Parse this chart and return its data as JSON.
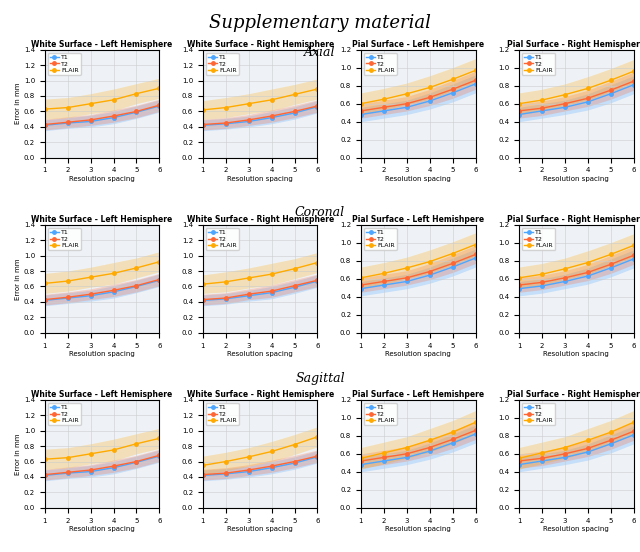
{
  "title": "Supplementary material",
  "row_labels": [
    "Axial",
    "Coronal",
    "Sagittal"
  ],
  "col_titles": [
    "White Surface - Left Hemisphere",
    "White Surface - Right Hemisphere",
    "Pial Surface - Left Hemishpere",
    "Pial Surface - Right Hemisphere"
  ],
  "x": [
    1,
    2,
    3,
    4,
    5,
    6
  ],
  "colors": {
    "T1": "#4da6ff",
    "T2": "#ff6633",
    "FLAIR": "#ffaa00"
  },
  "legend_labels": [
    "T1",
    "T2",
    "FLAIR"
  ],
  "xlabel": "Resolution spacing",
  "ylabel": "Error in mm",
  "data": {
    "Axial": {
      "White Surface - Left Hemisphere": {
        "T1": {
          "mean": [
            0.42,
            0.45,
            0.47,
            0.52,
            0.59,
            0.67
          ],
          "lo": [
            0.35,
            0.38,
            0.4,
            0.44,
            0.51,
            0.59
          ],
          "hi": [
            0.49,
            0.52,
            0.55,
            0.6,
            0.67,
            0.75
          ]
        },
        "T2": {
          "mean": [
            0.43,
            0.46,
            0.49,
            0.54,
            0.6,
            0.68
          ],
          "lo": [
            0.36,
            0.39,
            0.42,
            0.46,
            0.52,
            0.6
          ],
          "hi": [
            0.5,
            0.53,
            0.56,
            0.62,
            0.68,
            0.76
          ]
        },
        "FLAIR": {
          "mean": [
            0.63,
            0.65,
            0.7,
            0.75,
            0.83,
            0.9
          ],
          "lo": [
            0.5,
            0.52,
            0.57,
            0.61,
            0.7,
            0.77
          ],
          "hi": [
            0.76,
            0.78,
            0.83,
            0.89,
            0.96,
            1.03
          ]
        },
        "ylim": [
          0.0,
          1.4
        ]
      },
      "White Surface - Right Hemisphere": {
        "T1": {
          "mean": [
            0.42,
            0.44,
            0.47,
            0.52,
            0.58,
            0.66
          ],
          "lo": [
            0.35,
            0.37,
            0.4,
            0.44,
            0.5,
            0.58
          ],
          "hi": [
            0.49,
            0.51,
            0.54,
            0.6,
            0.66,
            0.74
          ]
        },
        "T2": {
          "mean": [
            0.43,
            0.45,
            0.49,
            0.54,
            0.6,
            0.67
          ],
          "lo": [
            0.36,
            0.38,
            0.42,
            0.46,
            0.52,
            0.59
          ],
          "hi": [
            0.5,
            0.52,
            0.56,
            0.62,
            0.68,
            0.75
          ]
        },
        "FLAIR": {
          "mean": [
            0.62,
            0.65,
            0.7,
            0.75,
            0.82,
            0.89
          ],
          "lo": [
            0.5,
            0.52,
            0.57,
            0.61,
            0.69,
            0.76
          ],
          "hi": [
            0.74,
            0.78,
            0.83,
            0.89,
            0.95,
            1.02
          ]
        },
        "ylim": [
          0.0,
          1.4
        ]
      },
      "Pial Surface - Left Hemishpere": {
        "T1": {
          "mean": [
            0.48,
            0.52,
            0.56,
            0.63,
            0.72,
            0.82
          ],
          "lo": [
            0.4,
            0.44,
            0.48,
            0.54,
            0.62,
            0.72
          ],
          "hi": [
            0.56,
            0.6,
            0.64,
            0.72,
            0.82,
            0.92
          ]
        },
        "T2": {
          "mean": [
            0.52,
            0.56,
            0.6,
            0.67,
            0.76,
            0.86
          ],
          "lo": [
            0.44,
            0.48,
            0.52,
            0.58,
            0.66,
            0.76
          ],
          "hi": [
            0.6,
            0.64,
            0.68,
            0.76,
            0.86,
            0.96
          ]
        },
        "FLAIR": {
          "mean": [
            0.6,
            0.65,
            0.71,
            0.78,
            0.87,
            0.97
          ],
          "lo": [
            0.48,
            0.53,
            0.59,
            0.65,
            0.74,
            0.84
          ],
          "hi": [
            0.72,
            0.77,
            0.83,
            0.91,
            1.0,
            1.1
          ]
        },
        "ylim": [
          0.0,
          1.2
        ]
      },
      "Pial Surface - Right Hemisphere": {
        "T1": {
          "mean": [
            0.48,
            0.52,
            0.56,
            0.62,
            0.71,
            0.81
          ],
          "lo": [
            0.4,
            0.44,
            0.48,
            0.53,
            0.61,
            0.71
          ],
          "hi": [
            0.56,
            0.6,
            0.64,
            0.71,
            0.81,
            0.91
          ]
        },
        "T2": {
          "mean": [
            0.52,
            0.55,
            0.6,
            0.66,
            0.75,
            0.85
          ],
          "lo": [
            0.44,
            0.47,
            0.52,
            0.57,
            0.65,
            0.75
          ],
          "hi": [
            0.6,
            0.63,
            0.68,
            0.75,
            0.85,
            0.95
          ]
        },
        "FLAIR": {
          "mean": [
            0.6,
            0.64,
            0.7,
            0.77,
            0.86,
            0.96
          ],
          "lo": [
            0.48,
            0.52,
            0.58,
            0.64,
            0.73,
            0.83
          ],
          "hi": [
            0.72,
            0.76,
            0.82,
            0.9,
            0.99,
            1.09
          ]
        },
        "ylim": [
          0.0,
          1.2
        ]
      }
    },
    "Coronal": {
      "White Surface - Left Hemisphere": {
        "T1": {
          "mean": [
            0.42,
            0.45,
            0.48,
            0.53,
            0.6,
            0.68
          ],
          "lo": [
            0.35,
            0.38,
            0.41,
            0.45,
            0.52,
            0.6
          ],
          "hi": [
            0.49,
            0.52,
            0.55,
            0.61,
            0.68,
            0.76
          ]
        },
        "T2": {
          "mean": [
            0.43,
            0.46,
            0.5,
            0.55,
            0.61,
            0.69
          ],
          "lo": [
            0.36,
            0.39,
            0.43,
            0.47,
            0.53,
            0.61
          ],
          "hi": [
            0.5,
            0.53,
            0.57,
            0.63,
            0.69,
            0.77
          ]
        },
        "FLAIR": {
          "mean": [
            0.64,
            0.67,
            0.72,
            0.77,
            0.84,
            0.92
          ],
          "lo": [
            0.51,
            0.54,
            0.59,
            0.63,
            0.71,
            0.79
          ],
          "hi": [
            0.77,
            0.8,
            0.85,
            0.91,
            0.97,
            1.05
          ]
        },
        "ylim": [
          0.0,
          1.4
        ]
      },
      "White Surface - Right Hemisphere": {
        "T1": {
          "mean": [
            0.42,
            0.44,
            0.48,
            0.52,
            0.59,
            0.67
          ],
          "lo": [
            0.35,
            0.37,
            0.41,
            0.44,
            0.51,
            0.59
          ],
          "hi": [
            0.49,
            0.51,
            0.55,
            0.6,
            0.67,
            0.75
          ]
        },
        "T2": {
          "mean": [
            0.43,
            0.45,
            0.5,
            0.54,
            0.61,
            0.68
          ],
          "lo": [
            0.36,
            0.38,
            0.43,
            0.46,
            0.53,
            0.6
          ],
          "hi": [
            0.5,
            0.52,
            0.57,
            0.62,
            0.69,
            0.76
          ]
        },
        "FLAIR": {
          "mean": [
            0.63,
            0.66,
            0.71,
            0.76,
            0.83,
            0.91
          ],
          "lo": [
            0.51,
            0.53,
            0.58,
            0.62,
            0.7,
            0.78
          ],
          "hi": [
            0.75,
            0.79,
            0.84,
            0.9,
            0.96,
            1.04
          ]
        },
        "ylim": [
          0.0,
          1.4
        ]
      },
      "Pial Surface - Left Hemishpere": {
        "T1": {
          "mean": [
            0.49,
            0.53,
            0.57,
            0.64,
            0.73,
            0.83
          ],
          "lo": [
            0.41,
            0.45,
            0.49,
            0.55,
            0.63,
            0.73
          ],
          "hi": [
            0.57,
            0.61,
            0.65,
            0.73,
            0.83,
            0.93
          ]
        },
        "T2": {
          "mean": [
            0.53,
            0.57,
            0.61,
            0.68,
            0.77,
            0.87
          ],
          "lo": [
            0.45,
            0.49,
            0.53,
            0.59,
            0.67,
            0.77
          ],
          "hi": [
            0.61,
            0.65,
            0.69,
            0.77,
            0.87,
            0.97
          ]
        },
        "FLAIR": {
          "mean": [
            0.61,
            0.66,
            0.72,
            0.79,
            0.88,
            0.98
          ],
          "lo": [
            0.49,
            0.54,
            0.6,
            0.66,
            0.75,
            0.85
          ],
          "hi": [
            0.73,
            0.78,
            0.84,
            0.92,
            1.01,
            1.11
          ]
        },
        "ylim": [
          0.0,
          1.2
        ]
      },
      "Pial Surface - Right Hemisphere": {
        "T1": {
          "mean": [
            0.49,
            0.52,
            0.57,
            0.63,
            0.72,
            0.82
          ],
          "lo": [
            0.41,
            0.44,
            0.49,
            0.54,
            0.62,
            0.72
          ],
          "hi": [
            0.57,
            0.6,
            0.65,
            0.72,
            0.82,
            0.92
          ]
        },
        "T2": {
          "mean": [
            0.53,
            0.56,
            0.61,
            0.67,
            0.76,
            0.86
          ],
          "lo": [
            0.45,
            0.48,
            0.53,
            0.58,
            0.66,
            0.76
          ],
          "hi": [
            0.61,
            0.64,
            0.69,
            0.76,
            0.86,
            0.96
          ]
        },
        "FLAIR": {
          "mean": [
            0.61,
            0.65,
            0.71,
            0.78,
            0.87,
            0.97
          ],
          "lo": [
            0.49,
            0.53,
            0.59,
            0.65,
            0.74,
            0.84
          ],
          "hi": [
            0.73,
            0.77,
            0.83,
            0.91,
            1.0,
            1.1
          ]
        },
        "ylim": [
          0.0,
          1.2
        ]
      }
    },
    "Sagittal": {
      "White Surface - Left Hemisphere": {
        "T1": {
          "mean": [
            0.42,
            0.45,
            0.47,
            0.52,
            0.59,
            0.67
          ],
          "lo": [
            0.35,
            0.38,
            0.4,
            0.44,
            0.51,
            0.59
          ],
          "hi": [
            0.49,
            0.52,
            0.55,
            0.6,
            0.67,
            0.75
          ]
        },
        "T2": {
          "mean": [
            0.43,
            0.46,
            0.49,
            0.54,
            0.6,
            0.68
          ],
          "lo": [
            0.36,
            0.39,
            0.42,
            0.46,
            0.52,
            0.6
          ],
          "hi": [
            0.5,
            0.53,
            0.56,
            0.62,
            0.68,
            0.76
          ]
        },
        "FLAIR": {
          "mean": [
            0.63,
            0.65,
            0.7,
            0.75,
            0.83,
            0.9
          ],
          "lo": [
            0.5,
            0.52,
            0.57,
            0.61,
            0.7,
            0.77
          ],
          "hi": [
            0.76,
            0.78,
            0.83,
            0.89,
            0.96,
            1.03
          ]
        },
        "ylim": [
          0.0,
          1.4
        ]
      },
      "White Surface - Right Hemisphere": {
        "T1": {
          "mean": [
            0.42,
            0.44,
            0.47,
            0.52,
            0.58,
            0.66
          ],
          "lo": [
            0.35,
            0.37,
            0.4,
            0.44,
            0.5,
            0.58
          ],
          "hi": [
            0.49,
            0.51,
            0.54,
            0.6,
            0.66,
            0.74
          ]
        },
        "T2": {
          "mean": [
            0.43,
            0.45,
            0.49,
            0.54,
            0.6,
            0.67
          ],
          "lo": [
            0.36,
            0.38,
            0.42,
            0.46,
            0.52,
            0.59
          ],
          "hi": [
            0.5,
            0.52,
            0.56,
            0.62,
            0.68,
            0.75
          ]
        },
        "FLAIR": {
          "mean": [
            0.55,
            0.6,
            0.66,
            0.73,
            0.82,
            0.92
          ],
          "lo": [
            0.43,
            0.48,
            0.54,
            0.6,
            0.69,
            0.79
          ],
          "hi": [
            0.67,
            0.72,
            0.78,
            0.86,
            0.95,
            1.05
          ]
        },
        "ylim": [
          0.0,
          1.4
        ]
      },
      "Pial Surface - Left Hemishpere": {
        "T1": {
          "mean": [
            0.48,
            0.52,
            0.56,
            0.63,
            0.72,
            0.82
          ],
          "lo": [
            0.4,
            0.44,
            0.48,
            0.54,
            0.62,
            0.72
          ],
          "hi": [
            0.56,
            0.6,
            0.64,
            0.72,
            0.82,
            0.92
          ]
        },
        "T2": {
          "mean": [
            0.52,
            0.56,
            0.6,
            0.67,
            0.76,
            0.86
          ],
          "lo": [
            0.44,
            0.48,
            0.52,
            0.58,
            0.66,
            0.76
          ],
          "hi": [
            0.6,
            0.64,
            0.68,
            0.76,
            0.86,
            0.96
          ]
        },
        "FLAIR": {
          "mean": [
            0.55,
            0.61,
            0.67,
            0.75,
            0.84,
            0.95
          ],
          "lo": [
            0.43,
            0.49,
            0.55,
            0.62,
            0.71,
            0.82
          ],
          "hi": [
            0.67,
            0.73,
            0.79,
            0.88,
            0.97,
            1.08
          ]
        },
        "ylim": [
          0.0,
          1.2
        ]
      },
      "Pial Surface - Right Hemisphere": {
        "T1": {
          "mean": [
            0.48,
            0.52,
            0.56,
            0.62,
            0.71,
            0.81
          ],
          "lo": [
            0.4,
            0.44,
            0.48,
            0.53,
            0.61,
            0.71
          ],
          "hi": [
            0.56,
            0.6,
            0.64,
            0.71,
            0.81,
            0.91
          ]
        },
        "T2": {
          "mean": [
            0.52,
            0.55,
            0.6,
            0.66,
            0.75,
            0.85
          ],
          "lo": [
            0.44,
            0.47,
            0.52,
            0.57,
            0.65,
            0.75
          ],
          "hi": [
            0.6,
            0.63,
            0.68,
            0.75,
            0.85,
            0.95
          ]
        },
        "FLAIR": {
          "mean": [
            0.55,
            0.61,
            0.67,
            0.75,
            0.84,
            0.95
          ],
          "lo": [
            0.43,
            0.49,
            0.55,
            0.62,
            0.71,
            0.82
          ],
          "hi": [
            0.67,
            0.73,
            0.79,
            0.88,
            0.97,
            1.08
          ]
        },
        "ylim": [
          0.0,
          1.2
        ]
      }
    }
  }
}
